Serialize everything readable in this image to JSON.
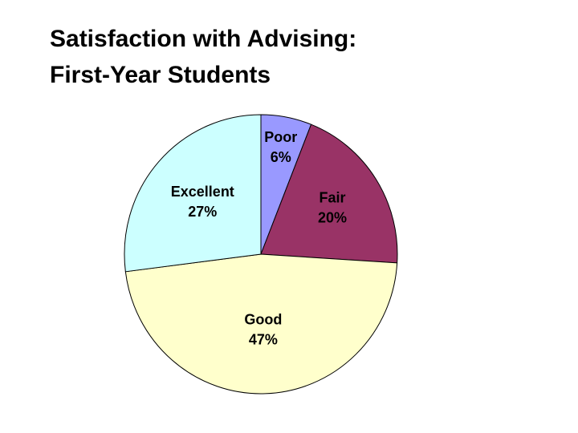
{
  "title": {
    "line1": "Satisfaction with Advising:",
    "line2": "First-Year Students"
  },
  "chart_data": {
    "type": "pie",
    "start": "12 o'clock",
    "direction": "clockwise",
    "legend": "none",
    "slices": [
      {
        "label": "Poor",
        "value": 6,
        "value_label": "6%",
        "color": "#9999ff"
      },
      {
        "label": "Fair",
        "value": 20,
        "value_label": "20%",
        "color": "#993366"
      },
      {
        "label": "Good",
        "value": 47,
        "value_label": "47%",
        "color": "#ffffcc"
      },
      {
        "label": "Excellent",
        "value": 27,
        "value_label": "27%",
        "color": "#ccffff"
      }
    ]
  }
}
